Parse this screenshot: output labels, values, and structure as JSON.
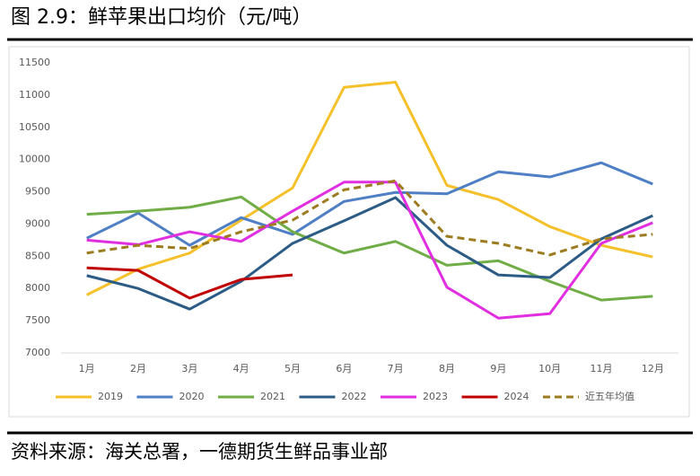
{
  "title": "图 2.9：鲜苹果出口均价（元/吨）",
  "source": "资料来源：海关总署，一德期货生鲜品事业部",
  "chart_data": {
    "type": "line",
    "categories": [
      "1月",
      "2月",
      "3月",
      "4月",
      "5月",
      "6月",
      "7月",
      "8月",
      "9月",
      "10月",
      "11月",
      "12月"
    ],
    "series": [
      {
        "name": "2019",
        "color": "#f5c02a",
        "values": [
          7900,
          8300,
          8550,
          9060,
          9560,
          11120,
          11200,
          9600,
          9380,
          8960,
          8670,
          8490
        ]
      },
      {
        "name": "2020",
        "color": "#4f7fc4",
        "values": [
          8780,
          9170,
          8670,
          9100,
          8840,
          9350,
          9490,
          9470,
          9810,
          9730,
          9950,
          9620
        ]
      },
      {
        "name": "2021",
        "color": "#71ad47",
        "values": [
          9150,
          9200,
          9260,
          9420,
          8880,
          8550,
          8730,
          8360,
          8430,
          8110,
          7820,
          7880
        ]
      },
      {
        "name": "2022",
        "color": "#2c5b86",
        "values": [
          8200,
          8000,
          7680,
          8110,
          8700,
          9050,
          9410,
          8670,
          8210,
          8170,
          8770,
          9130
        ]
      },
      {
        "name": "2023",
        "color": "#e02ee0",
        "values": [
          8750,
          8680,
          8880,
          8730,
          9200,
          9650,
          9650,
          8020,
          7540,
          7610,
          8700,
          9020
        ]
      },
      {
        "name": "2024",
        "color": "#c00000",
        "values": [
          8320,
          8280,
          7850,
          8140,
          8210,
          null,
          null,
          null,
          null,
          null,
          null,
          null
        ]
      },
      {
        "name": "近五年均值",
        "color": "#9c7c1e",
        "dashed": true,
        "values": [
          8550,
          8670,
          8620,
          8880,
          9060,
          9530,
          9670,
          8810,
          8700,
          8520,
          8770,
          8840
        ]
      }
    ],
    "ylim": [
      7000,
      11500
    ],
    "yticks": [
      7000,
      7500,
      8000,
      8500,
      9000,
      9500,
      10000,
      10500,
      11000,
      11500
    ],
    "grid": false,
    "legend": "bottom"
  }
}
